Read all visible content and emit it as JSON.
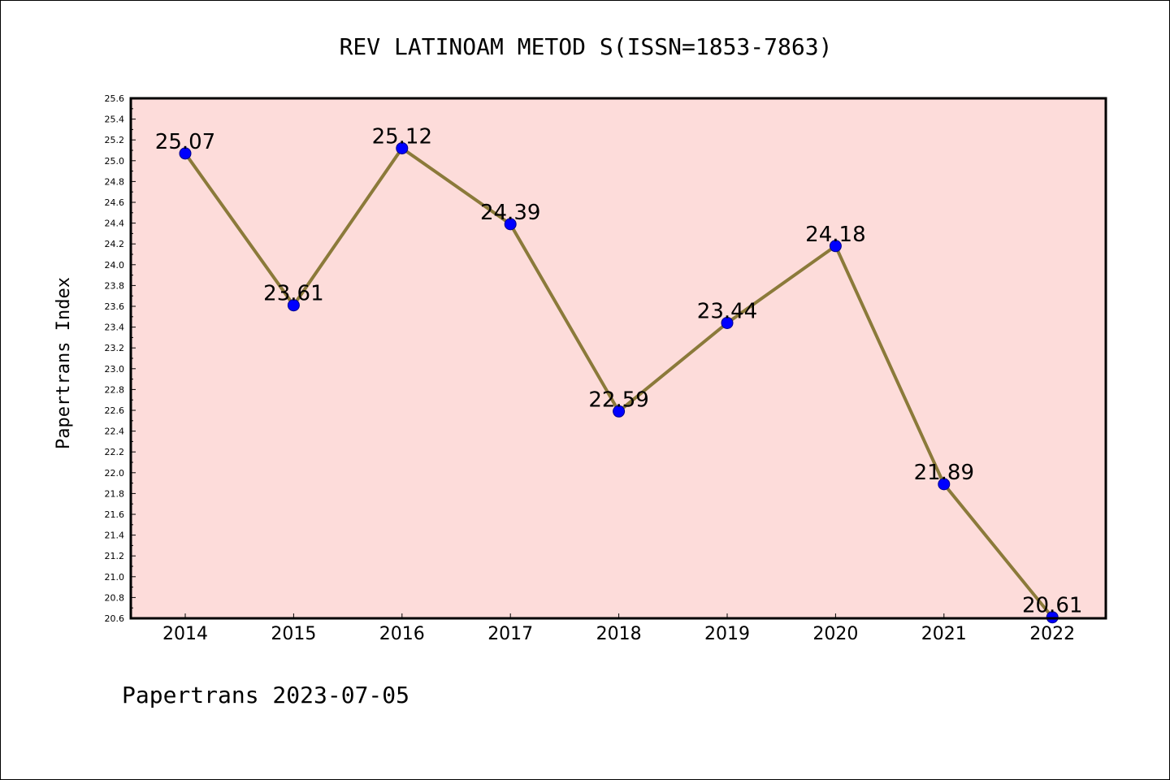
{
  "colors": {
    "plot_background": "#fddcda",
    "line": "#8b7a3a",
    "marker_fill": "#0000ff",
    "marker_stroke": "#00008b",
    "axis": "#000000"
  },
  "chart_data": {
    "type": "line",
    "title": "REV LATINOAM METOD S(ISSN=1853-7863)",
    "xlabel": "",
    "ylabel": "Papertrans Index",
    "categories": [
      "2014",
      "2015",
      "2016",
      "2017",
      "2018",
      "2019",
      "2020",
      "2021",
      "2022"
    ],
    "series": [
      {
        "values": [
          25.07,
          23.61,
          25.12,
          24.39,
          22.59,
          23.44,
          24.18,
          21.89,
          20.61
        ],
        "labels": [
          "25.07",
          "23.61",
          "25.12",
          "24.39",
          "22.59",
          "23.44",
          "24.18",
          "21.89",
          "20.61"
        ]
      }
    ],
    "ylim": [
      20.6,
      25.6
    ],
    "yticks": [
      "20.6",
      "20.8",
      "21.0",
      "21.2",
      "21.4",
      "21.6",
      "21.8",
      "22.0",
      "22.2",
      "22.4",
      "22.6",
      "22.8",
      "23.0",
      "23.2",
      "23.4",
      "23.6",
      "23.8",
      "24.0",
      "24.2",
      "24.4",
      "24.6",
      "24.8",
      "25.0",
      "25.2",
      "25.4",
      "25.6"
    ],
    "grid": false,
    "legend": "none"
  },
  "footer": "Papertrans 2023-07-05"
}
